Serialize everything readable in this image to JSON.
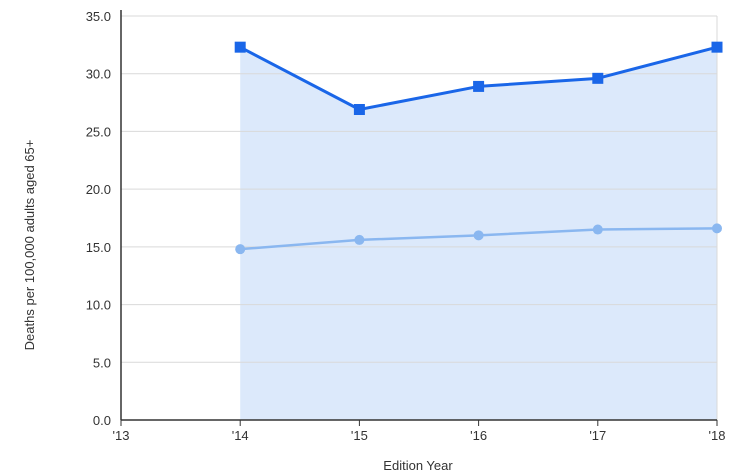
{
  "chart_data": {
    "type": "line",
    "title": "",
    "xlabel": "Edition Year",
    "ylabel": "Deaths per 100,000 adults aged 65+",
    "x": [
      "'13",
      "'14",
      "'15",
      "'16",
      "'17",
      "'18"
    ],
    "ylim": [
      0,
      35
    ],
    "yticks": [
      "0.0",
      "5.0",
      "10.0",
      "15.0",
      "20.0",
      "25.0",
      "30.0",
      "35.0"
    ],
    "grid": true,
    "series": [
      {
        "values": [
          null,
          32.3,
          26.9,
          28.9,
          29.6,
          32.3
        ],
        "color": "#1a66e8",
        "marker": "square",
        "area_fill": "#dce9fb"
      },
      {
        "values": [
          null,
          14.8,
          15.6,
          16.0,
          16.5,
          16.6
        ],
        "color": "#8ab7f0",
        "marker": "circle"
      }
    ],
    "axis_color": "#333333",
    "grid_color": "#d9d9d9"
  }
}
